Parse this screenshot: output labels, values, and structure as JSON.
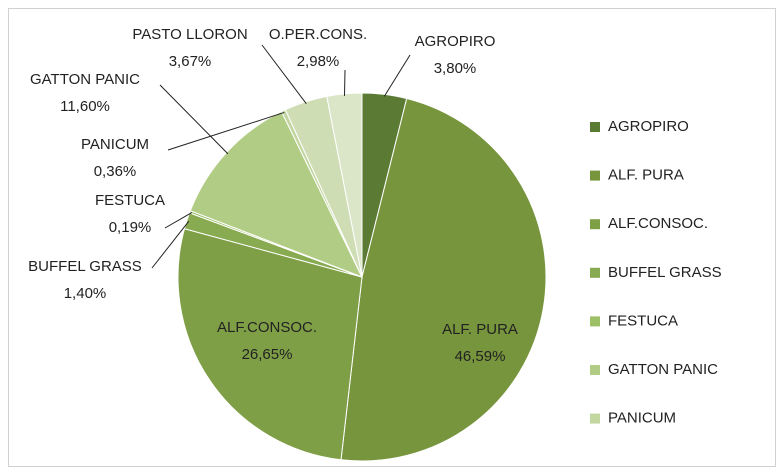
{
  "chart_data": {
    "type": "pie",
    "categories": [
      "AGROPIRO",
      "ALF. PURA",
      "ALF.CONSOC.",
      "BUFFEL GRASS",
      "FESTUCA",
      "GATTON PANIC",
      "PANICUM",
      "PASTO LLORON",
      "O.PER.CONS."
    ],
    "values": [
      3.8,
      46.59,
      26.65,
      1.4,
      0.19,
      11.6,
      0.36,
      3.67,
      2.98
    ],
    "value_labels": [
      "3,80%",
      "46,59%",
      "26,65%",
      "1,40%",
      "0,19%",
      "11,60%",
      "0,36%",
      "3,67%",
      "2,98%"
    ],
    "colors": [
      "#5b7b34",
      "#77953d",
      "#7f9f47",
      "#88aa50",
      "#9dbf66",
      "#b1cc85",
      "#c2d6a0",
      "#cfddb5",
      "#dbe5c8"
    ],
    "legend": "right"
  }
}
